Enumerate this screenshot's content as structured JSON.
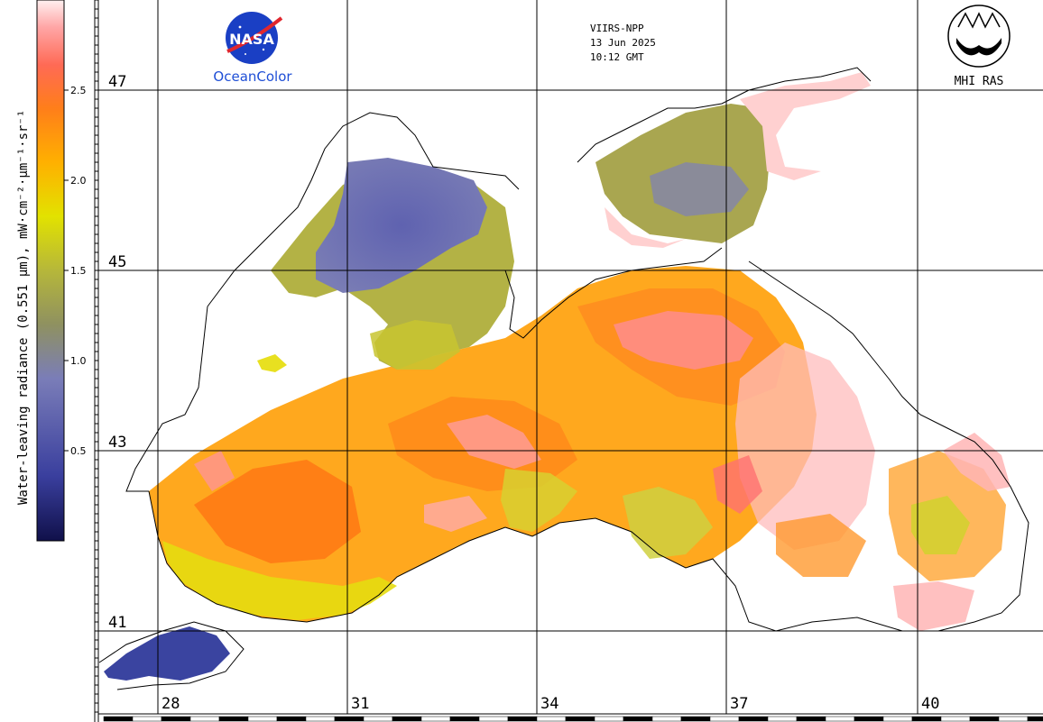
{
  "header": {
    "sensor": "VIIRS-NPP",
    "date": "13 Jun 2025",
    "time": "10:12 GMT",
    "nasa_logo_text": "NASA",
    "nasa_brand": "OceanColor",
    "mhi_brand": "MHI RAS"
  },
  "colorbar": {
    "title": "Water-leaving radiance (0.551 µm), mW·cm⁻²·µm⁻¹·sr⁻¹",
    "ticks": [
      "2.5",
      "2.0",
      "1.5",
      "1.0",
      "0.5"
    ],
    "tick_values": [
      2.5,
      2.0,
      1.5,
      1.0,
      0.5
    ],
    "range": [
      0,
      3.0
    ],
    "colors": [
      "#10104a",
      "#3a3f9e",
      "#7a7db8",
      "#8f9160",
      "#b6b73a",
      "#e2e200",
      "#ffb000",
      "#ff7e1a",
      "#ff6a55",
      "#ffa6a6",
      "#fff0f0"
    ]
  },
  "grid": {
    "latitudes": [
      "47",
      "45",
      "43",
      "41"
    ],
    "longitudes": [
      "28",
      "31",
      "34",
      "37",
      "40"
    ]
  },
  "colors": {
    "land": "#ffffff",
    "coast": "#000000",
    "grid": "#000000"
  }
}
